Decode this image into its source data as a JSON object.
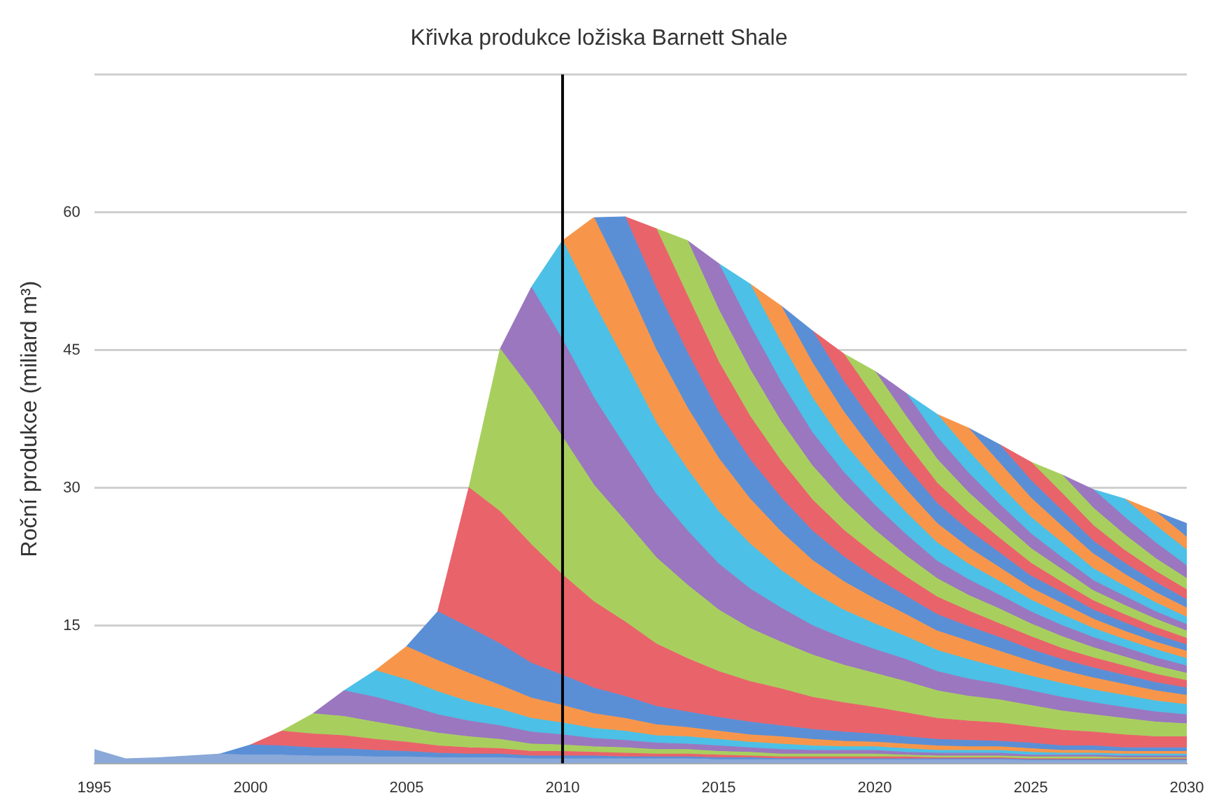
{
  "chart_data": {
    "type": "area",
    "title": "Křivka produkce ložiska Barnett Shale",
    "ylabel": "Roční produkce (miliard m³)",
    "stacked": true,
    "grid": "y",
    "x": [
      1995,
      1996,
      1997,
      1998,
      1999,
      2000,
      2001,
      2002,
      2003,
      2004,
      2005,
      2006,
      2007,
      2008,
      2009,
      2010,
      2011,
      2012,
      2013,
      2014,
      2015,
      2016,
      2017,
      2018,
      2019,
      2020,
      2021,
      2022,
      2023,
      2024,
      2025,
      2026,
      2027,
      2028,
      2029,
      2030
    ],
    "xlim": [
      1995,
      2030
    ],
    "xticks": [
      1995,
      2000,
      2005,
      2010,
      2015,
      2020,
      2025,
      2030
    ],
    "ylim": [
      0,
      75
    ],
    "yticks": [
      {
        "value": 0,
        "label": null
      },
      15,
      30,
      45,
      60,
      {
        "value": 75,
        "label": null
      }
    ],
    "ref_lines": [
      {
        "axis": "x",
        "value": 2010,
        "color": "#000000"
      }
    ],
    "series": [
      {
        "color": "#8aa8d8",
        "values": [
          1.5,
          0.5,
          0.6,
          0.8,
          1.0,
          0.9,
          0.9,
          0.8,
          0.8,
          0.7,
          0.7,
          0.6,
          0.6,
          0.6,
          0.5,
          0.5,
          0.5,
          0.5,
          0.5,
          0.5,
          0.4,
          0.4,
          0.4,
          0.4,
          0.4,
          0.4,
          0.4,
          0.4,
          0.4,
          0.4,
          0.3,
          0.3,
          0.3,
          0.3,
          0.3,
          0.3
        ]
      },
      {
        "color": "#5a8fd6",
        "values": [
          null,
          null,
          null,
          null,
          0,
          1.1,
          1.0,
          0.9,
          0.8,
          0.7,
          0.6,
          0.5,
          0.4,
          0.4,
          0.3,
          0.3,
          0.3,
          0.2,
          0.2,
          0.2,
          0.2,
          0.2,
          0.1,
          0.1,
          0.1,
          0.1,
          0.1,
          0.1,
          0.1,
          0.1,
          0.1,
          0.1,
          0.1,
          0.1,
          0.1,
          0.1
        ]
      },
      {
        "color": "#e9636b",
        "values": [
          null,
          null,
          null,
          null,
          null,
          0,
          1.6,
          1.5,
          1.4,
          1.2,
          1.0,
          0.8,
          0.7,
          0.6,
          0.5,
          0.5,
          0.4,
          0.4,
          0.3,
          0.3,
          0.3,
          0.2,
          0.2,
          0.2,
          0.2,
          0.2,
          0.2,
          0.1,
          0.1,
          0.1,
          0.1,
          0.1,
          0.1,
          0.1,
          0.1,
          0.1
        ]
      },
      {
        "color": "#a8cf5e",
        "values": [
          null,
          null,
          null,
          null,
          null,
          null,
          0,
          2.2,
          2.1,
          1.9,
          1.6,
          1.4,
          1.2,
          1.0,
          0.8,
          0.7,
          0.6,
          0.6,
          0.5,
          0.5,
          0.4,
          0.4,
          0.3,
          0.3,
          0.3,
          0.3,
          0.2,
          0.2,
          0.2,
          0.2,
          0.2,
          0.2,
          0.2,
          0.1,
          0.1,
          0.1
        ]
      },
      {
        "color": "#9a77bf",
        "values": [
          null,
          null,
          null,
          null,
          null,
          null,
          null,
          0,
          2.8,
          2.7,
          2.4,
          2.0,
          1.7,
          1.5,
          1.3,
          1.1,
          0.9,
          0.8,
          0.7,
          0.6,
          0.6,
          0.5,
          0.5,
          0.4,
          0.4,
          0.4,
          0.3,
          0.3,
          0.3,
          0.3,
          0.2,
          0.2,
          0.2,
          0.2,
          0.2,
          0.2
        ]
      },
      {
        "color": "#4cc0e6",
        "values": [
          null,
          null,
          null,
          null,
          null,
          null,
          null,
          null,
          0,
          2.9,
          2.8,
          2.5,
          2.1,
          1.8,
          1.5,
          1.3,
          1.1,
          1.0,
          0.8,
          0.8,
          0.7,
          0.6,
          0.6,
          0.5,
          0.4,
          0.4,
          0.4,
          0.3,
          0.3,
          0.3,
          0.3,
          0.2,
          0.2,
          0.2,
          0.2,
          0.2
        ]
      },
      {
        "color": "#f7964a",
        "values": [
          null,
          null,
          null,
          null,
          null,
          null,
          null,
          null,
          null,
          0,
          3.6,
          3.4,
          3.1,
          2.6,
          2.2,
          1.9,
          1.6,
          1.4,
          1.2,
          1.0,
          0.9,
          0.8,
          0.8,
          0.7,
          0.6,
          0.5,
          0.5,
          0.5,
          0.4,
          0.4,
          0.4,
          0.3,
          0.3,
          0.3,
          0.3,
          0.3
        ]
      },
      {
        "color": "#5a8fd6",
        "values": [
          null,
          null,
          null,
          null,
          null,
          null,
          null,
          null,
          null,
          null,
          0,
          5.3,
          5.0,
          4.5,
          3.8,
          3.3,
          2.8,
          2.4,
          2.0,
          1.7,
          1.5,
          1.4,
          1.2,
          1.1,
          1.0,
          0.9,
          0.8,
          0.7,
          0.7,
          0.6,
          0.6,
          0.5,
          0.5,
          0.4,
          0.4,
          0.4
        ]
      },
      {
        "color": "#e9636b",
        "values": [
          null,
          null,
          null,
          null,
          null,
          null,
          null,
          null,
          null,
          null,
          null,
          0,
          15.2,
          14.4,
          12.9,
          10.9,
          9.4,
          8.1,
          6.8,
          5.8,
          5.0,
          4.4,
          4.0,
          3.5,
          3.2,
          2.9,
          2.6,
          2.3,
          2.1,
          2.0,
          1.8,
          1.7,
          1.5,
          1.4,
          1.2,
          1.2
        ]
      },
      {
        "color": "#a8cf5e",
        "values": [
          null,
          null,
          null,
          null,
          null,
          null,
          null,
          null,
          null,
          null,
          null,
          null,
          0,
          17.7,
          16.8,
          15.0,
          12.7,
          11.0,
          9.4,
          8.0,
          6.7,
          5.8,
          5.1,
          4.6,
          4.1,
          3.7,
          3.4,
          3.0,
          2.7,
          2.5,
          2.3,
          2.1,
          1.9,
          1.8,
          1.6,
          1.4
        ]
      },
      {
        "color": "#9a77bf",
        "values": [
          null,
          null,
          null,
          null,
          null,
          null,
          null,
          null,
          null,
          null,
          null,
          null,
          null,
          0,
          11.2,
          10.6,
          9.5,
          8.1,
          6.9,
          5.9,
          5.0,
          4.3,
          3.7,
          3.2,
          2.9,
          2.6,
          2.4,
          2.1,
          1.9,
          1.7,
          1.6,
          1.5,
          1.3,
          1.2,
          1.1,
          1.0
        ]
      },
      {
        "color": "#4cc0e6",
        "values": [
          null,
          null,
          null,
          null,
          null,
          null,
          null,
          null,
          null,
          null,
          null,
          null,
          null,
          null,
          0,
          10.8,
          10.3,
          9.2,
          7.8,
          6.7,
          5.7,
          4.9,
          4.1,
          3.6,
          3.1,
          2.8,
          2.5,
          2.3,
          2.1,
          1.8,
          1.6,
          1.5,
          1.4,
          1.3,
          1.2,
          1.1
        ]
      },
      {
        "color": "#f7964a",
        "values": [
          null,
          null,
          null,
          null,
          null,
          null,
          null,
          null,
          null,
          null,
          null,
          null,
          null,
          null,
          null,
          0,
          9.3,
          8.8,
          7.9,
          6.7,
          5.8,
          4.9,
          4.2,
          3.5,
          3.1,
          2.7,
          2.4,
          2.1,
          2.0,
          1.8,
          1.6,
          1.4,
          1.3,
          1.2,
          1.1,
          1.0
        ]
      },
      {
        "color": "#5a8fd6",
        "values": [
          null,
          null,
          null,
          null,
          null,
          null,
          null,
          null,
          null,
          null,
          null,
          null,
          null,
          null,
          null,
          null,
          0,
          7.0,
          6.7,
          6.0,
          5.0,
          4.3,
          3.7,
          3.2,
          2.7,
          2.3,
          2.0,
          1.8,
          1.6,
          1.5,
          1.3,
          1.2,
          1.1,
          1.0,
          0.9,
          0.8
        ]
      },
      {
        "color": "#e9636b",
        "values": [
          null,
          null,
          null,
          null,
          null,
          null,
          null,
          null,
          null,
          null,
          null,
          null,
          null,
          null,
          null,
          null,
          null,
          0,
          6.5,
          6.2,
          5.5,
          4.7,
          4.0,
          3.4,
          2.9,
          2.5,
          2.1,
          1.9,
          1.7,
          1.5,
          1.4,
          1.2,
          1.1,
          1.0,
          0.9,
          0.8
        ]
      },
      {
        "color": "#a8cf5e",
        "values": [
          null,
          null,
          null,
          null,
          null,
          null,
          null,
          null,
          null,
          null,
          null,
          null,
          null,
          null,
          null,
          null,
          null,
          null,
          0,
          6.0,
          5.7,
          5.1,
          4.3,
          3.7,
          3.2,
          2.7,
          2.3,
          2.0,
          1.7,
          1.6,
          1.4,
          1.3,
          1.1,
          1.0,
          0.9,
          0.8
        ]
      },
      {
        "color": "#9a77bf",
        "values": [
          null,
          null,
          null,
          null,
          null,
          null,
          null,
          null,
          null,
          null,
          null,
          null,
          null,
          null,
          null,
          null,
          null,
          null,
          null,
          0,
          5.0,
          4.8,
          4.3,
          3.6,
          3.1,
          2.7,
          2.3,
          1.9,
          1.7,
          1.5,
          1.3,
          1.2,
          1.1,
          1.0,
          0.9,
          0.8
        ]
      },
      {
        "color": "#4cc0e6",
        "values": [
          null,
          null,
          null,
          null,
          null,
          null,
          null,
          null,
          null,
          null,
          null,
          null,
          null,
          null,
          null,
          null,
          null,
          null,
          null,
          null,
          0,
          4.5,
          4.3,
          3.8,
          3.2,
          2.8,
          2.4,
          2.0,
          1.7,
          1.5,
          1.3,
          1.2,
          1.0,
          0.9,
          0.9,
          0.8
        ]
      },
      {
        "color": "#f7964a",
        "values": [
          null,
          null,
          null,
          null,
          null,
          null,
          null,
          null,
          null,
          null,
          null,
          null,
          null,
          null,
          null,
          null,
          null,
          null,
          null,
          null,
          null,
          0,
          4.0,
          3.8,
          3.4,
          2.9,
          2.5,
          2.1,
          1.8,
          1.5,
          1.3,
          1.2,
          1.0,
          0.9,
          0.8,
          0.8
        ]
      },
      {
        "color": "#5a8fd6",
        "values": [
          null,
          null,
          null,
          null,
          null,
          null,
          null,
          null,
          null,
          null,
          null,
          null,
          null,
          null,
          null,
          null,
          null,
          null,
          null,
          null,
          null,
          null,
          0,
          3.5,
          3.3,
          3.0,
          2.5,
          2.2,
          1.9,
          1.6,
          1.3,
          1.2,
          1.0,
          0.9,
          0.8,
          0.7
        ]
      },
      {
        "color": "#e9636b",
        "values": [
          null,
          null,
          null,
          null,
          null,
          null,
          null,
          null,
          null,
          null,
          null,
          null,
          null,
          null,
          null,
          null,
          null,
          null,
          null,
          null,
          null,
          null,
          null,
          0,
          3.0,
          2.9,
          2.6,
          2.2,
          1.9,
          1.6,
          1.4,
          1.1,
          1.0,
          0.9,
          0.8,
          0.7
        ]
      },
      {
        "color": "#a8cf5e",
        "values": [
          null,
          null,
          null,
          null,
          null,
          null,
          null,
          null,
          null,
          null,
          null,
          null,
          null,
          null,
          null,
          null,
          null,
          null,
          null,
          null,
          null,
          null,
          null,
          null,
          0,
          3.0,
          2.9,
          2.6,
          2.2,
          1.9,
          1.6,
          1.4,
          1.1,
          1.0,
          0.9,
          0.8
        ]
      },
      {
        "color": "#9a77bf",
        "values": [
          null,
          null,
          null,
          null,
          null,
          null,
          null,
          null,
          null,
          null,
          null,
          null,
          null,
          null,
          null,
          null,
          null,
          null,
          null,
          null,
          null,
          null,
          null,
          null,
          null,
          0,
          2.5,
          2.4,
          2.1,
          1.8,
          1.6,
          1.3,
          1.1,
          1.0,
          0.8,
          0.7
        ]
      },
      {
        "color": "#4cc0e6",
        "values": [
          null,
          null,
          null,
          null,
          null,
          null,
          null,
          null,
          null,
          null,
          null,
          null,
          null,
          null,
          null,
          null,
          null,
          null,
          null,
          null,
          null,
          null,
          null,
          null,
          null,
          null,
          0,
          2.5,
          2.4,
          2.1,
          1.8,
          1.6,
          1.3,
          1.1,
          1.0,
          0.8
        ]
      },
      {
        "color": "#f7964a",
        "values": [
          null,
          null,
          null,
          null,
          null,
          null,
          null,
          null,
          null,
          null,
          null,
          null,
          null,
          null,
          null,
          null,
          null,
          null,
          null,
          null,
          null,
          null,
          null,
          null,
          null,
          null,
          null,
          0,
          2.5,
          2.4,
          2.1,
          1.8,
          1.6,
          1.3,
          1.1,
          1.0
        ]
      },
      {
        "color": "#5a8fd6",
        "values": [
          null,
          null,
          null,
          null,
          null,
          null,
          null,
          null,
          null,
          null,
          null,
          null,
          null,
          null,
          null,
          null,
          null,
          null,
          null,
          null,
          null,
          null,
          null,
          null,
          null,
          null,
          null,
          null,
          0,
          2.0,
          1.9,
          1.7,
          1.4,
          1.2,
          1.1,
          0.9
        ]
      },
      {
        "color": "#e9636b",
        "values": [
          null,
          null,
          null,
          null,
          null,
          null,
          null,
          null,
          null,
          null,
          null,
          null,
          null,
          null,
          null,
          null,
          null,
          null,
          null,
          null,
          null,
          null,
          null,
          null,
          null,
          null,
          null,
          null,
          null,
          0,
          2.0,
          1.9,
          1.7,
          1.4,
          1.2,
          1.1
        ]
      },
      {
        "color": "#a8cf5e",
        "values": [
          null,
          null,
          null,
          null,
          null,
          null,
          null,
          null,
          null,
          null,
          null,
          null,
          null,
          null,
          null,
          null,
          null,
          null,
          null,
          null,
          null,
          null,
          null,
          null,
          null,
          null,
          null,
          null,
          null,
          null,
          0,
          2.0,
          1.9,
          1.7,
          1.4,
          1.2
        ]
      },
      {
        "color": "#9a77bf",
        "values": [
          null,
          null,
          null,
          null,
          null,
          null,
          null,
          null,
          null,
          null,
          null,
          null,
          null,
          null,
          null,
          null,
          null,
          null,
          null,
          null,
          null,
          null,
          null,
          null,
          null,
          null,
          null,
          null,
          null,
          null,
          null,
          0,
          2.0,
          1.9,
          1.7,
          1.4
        ]
      },
      {
        "color": "#4cc0e6",
        "values": [
          null,
          null,
          null,
          null,
          null,
          null,
          null,
          null,
          null,
          null,
          null,
          null,
          null,
          null,
          null,
          null,
          null,
          null,
          null,
          null,
          null,
          null,
          null,
          null,
          null,
          null,
          null,
          null,
          null,
          null,
          null,
          null,
          0,
          2.0,
          1.9,
          1.7
        ]
      },
      {
        "color": "#f7964a",
        "values": [
          null,
          null,
          null,
          null,
          null,
          null,
          null,
          null,
          null,
          null,
          null,
          null,
          null,
          null,
          null,
          null,
          null,
          null,
          null,
          null,
          null,
          null,
          null,
          null,
          null,
          null,
          null,
          null,
          null,
          null,
          null,
          null,
          null,
          0,
          1.5,
          1.4
        ]
      },
      {
        "color": "#5a8fd6",
        "values": [
          null,
          null,
          null,
          null,
          null,
          null,
          null,
          null,
          null,
          null,
          null,
          null,
          null,
          null,
          null,
          null,
          null,
          null,
          null,
          null,
          null,
          null,
          null,
          null,
          null,
          null,
          null,
          null,
          null,
          null,
          null,
          null,
          null,
          null,
          0,
          1.5
        ]
      }
    ]
  }
}
